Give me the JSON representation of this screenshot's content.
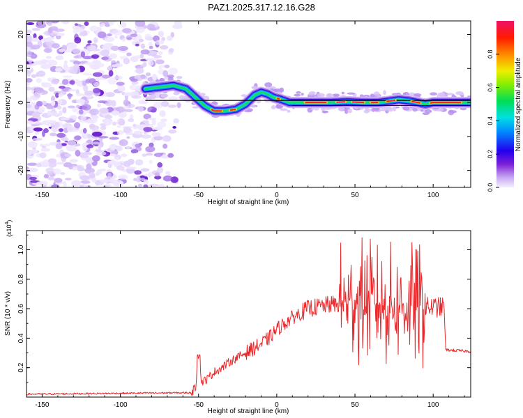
{
  "title": "PAZ1.2025.317.12.16.G28",
  "chart_data": [
    {
      "type": "heatmap",
      "xlabel": "Height of straight line (km)",
      "ylabel": "Frequency (Hz)",
      "xlim": [
        -160,
        124
      ],
      "ylim": [
        -25,
        24
      ],
      "xticks": [
        -150,
        -100,
        -50,
        0,
        50,
        100
      ],
      "yticks": [
        -20,
        -10,
        0,
        10,
        20
      ],
      "colorbar": {
        "label": "Normalized spectral amplitude",
        "range": [
          0,
          1
        ],
        "ticks": [
          "0.0",
          "0.2",
          "0.4",
          "0.6",
          "0.8"
        ]
      },
      "ridge": {
        "x": [
          -84,
          -75,
          -66,
          -58,
          -52,
          -46,
          -40,
          -33,
          -26,
          -20,
          -14,
          -10,
          -6,
          -2,
          2,
          8,
          15,
          25,
          35,
          45,
          55,
          65,
          72,
          78,
          84,
          90,
          95,
          100,
          110,
          124
        ],
        "y": [
          4,
          4.5,
          5,
          4,
          1.5,
          -1,
          -2.5,
          -2.5,
          -2,
          -0.5,
          2.2,
          3,
          2.5,
          1.5,
          1,
          0,
          0,
          0,
          0,
          0.2,
          0,
          0,
          0.4,
          0.8,
          0.5,
          0,
          -0.5,
          0,
          0,
          0
        ]
      },
      "reference_line": {
        "x": [
          -84,
          124
        ],
        "y": [
          0.6,
          0.6
        ]
      }
    },
    {
      "type": "line",
      "xlabel": "Height of straight line (km)",
      "ylabel": "SNR (10 * v/v)",
      "yscale_label": "(x10^4)",
      "scale_base": "x10",
      "scale_exp": "4",
      "xlim": [
        -160,
        124
      ],
      "ylim": [
        0,
        1.13
      ],
      "xticks": [
        -150,
        -100,
        -50,
        0,
        50,
        100
      ],
      "yticks": [
        0.2,
        0.4,
        0.6,
        0.8,
        1.0
      ],
      "series": [
        {
          "name": "SNR",
          "color": "#e8282b",
          "x": [
            -160,
            -55,
            -52,
            -50,
            -48,
            -45,
            -40,
            -35,
            -30,
            -25,
            -20,
            -15,
            -10,
            -5,
            0,
            5,
            10,
            15,
            20,
            25,
            30,
            35,
            40,
            45,
            50,
            55,
            60,
            65,
            70,
            75,
            80,
            85,
            90,
            95,
            100,
            105,
            107,
            108,
            124
          ],
          "y": [
            0.02,
            0.03,
            0.06,
            0.29,
            0.1,
            0.12,
            0.17,
            0.2,
            0.24,
            0.27,
            0.3,
            0.33,
            0.36,
            0.4,
            0.46,
            0.5,
            0.54,
            0.57,
            0.6,
            0.61,
            0.62,
            0.63,
            0.63,
            0.65,
            0.66,
            0.65,
            0.64,
            0.63,
            0.62,
            0.62,
            0.62,
            0.62,
            0.62,
            0.61,
            0.61,
            0.61,
            0.61,
            0.32,
            0.31
          ]
        }
      ]
    }
  ]
}
